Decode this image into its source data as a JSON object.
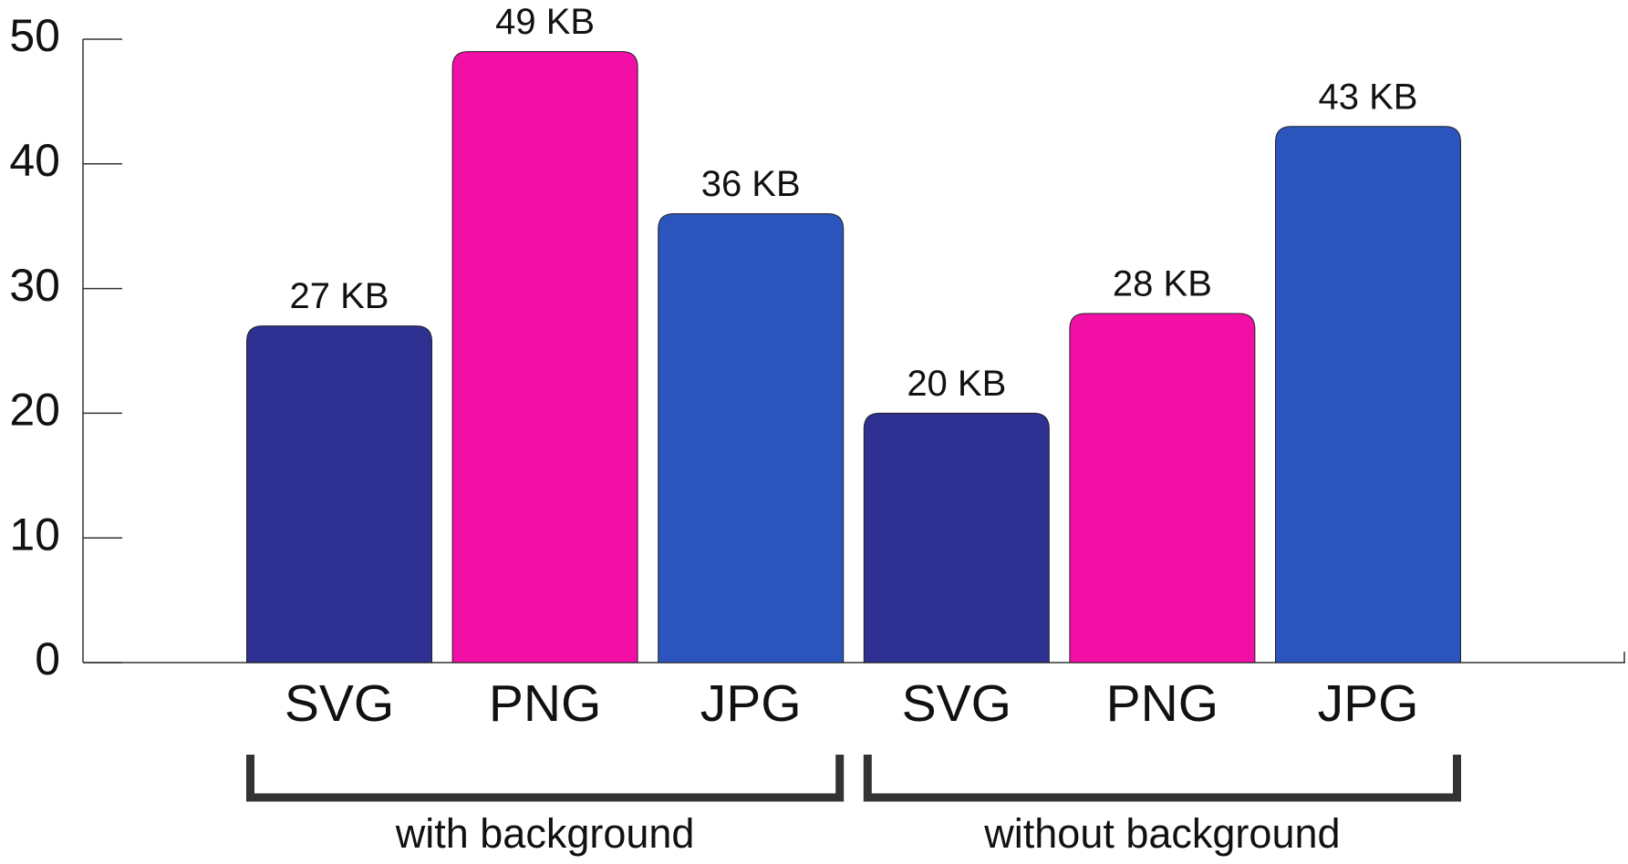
{
  "chart_data": {
    "type": "bar",
    "categories": [
      "SVG",
      "PNG",
      "JPG",
      "SVG",
      "PNG",
      "JPG"
    ],
    "values": [
      27,
      49,
      36,
      20,
      28,
      43
    ],
    "value_labels": [
      "27 KB",
      "49 KB",
      "36 KB",
      "20 KB",
      "28 KB",
      "43 KB"
    ],
    "colors": [
      "#2e3192",
      "#f20fa6",
      "#2b55bd",
      "#2e3192",
      "#f20fa6",
      "#2b55bd"
    ],
    "groups": [
      "with background",
      "without background"
    ],
    "ylim": [
      0,
      50
    ],
    "yticks": [
      0,
      10,
      20,
      30,
      40,
      50
    ],
    "grid": false
  }
}
